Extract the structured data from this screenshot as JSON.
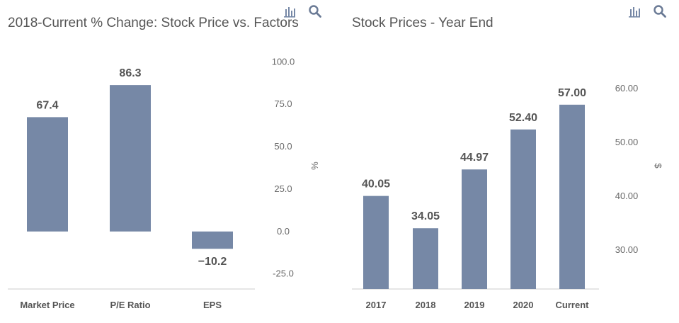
{
  "colors": {
    "bar": "#7688a6",
    "axis": "#cccccc",
    "text": "#555555"
  },
  "toolbar_icons": [
    "bar-chart-icon",
    "search-icon"
  ],
  "chart_data": [
    {
      "type": "bar",
      "title": "2018-Current % Change: Stock Price vs. Factors",
      "categories": [
        "Market Price",
        "P/E Ratio",
        "EPS"
      ],
      "values": [
        67.4,
        86.3,
        -10.2
      ],
      "value_labels": [
        "67.4",
        "86.3",
        "−10.2"
      ],
      "ylabel": "%",
      "ylim": [
        -25,
        100
      ],
      "yticks": [
        "100.0",
        "75.0",
        "50.0",
        "25.0",
        "0.0",
        "-25.0"
      ],
      "ytick_values": [
        100,
        75,
        50,
        25,
        0,
        -25
      ],
      "axis_side": "right",
      "grid": false
    },
    {
      "type": "bar",
      "title": "Stock Prices - Year End",
      "categories": [
        "2017",
        "2018",
        "2019",
        "2020",
        "Current"
      ],
      "values": [
        40.05,
        34.05,
        44.97,
        52.4,
        57.0
      ],
      "value_labels": [
        "40.05",
        "34.05",
        "44.97",
        "52.40",
        "57.00"
      ],
      "ylabel": "$",
      "ylim": [
        22.8,
        62.9
      ],
      "yticks": [
        "60.00",
        "50.00",
        "40.00",
        "30.00"
      ],
      "ytick_values": [
        60,
        50,
        40,
        30
      ],
      "axis_side": "right",
      "grid": false
    }
  ]
}
